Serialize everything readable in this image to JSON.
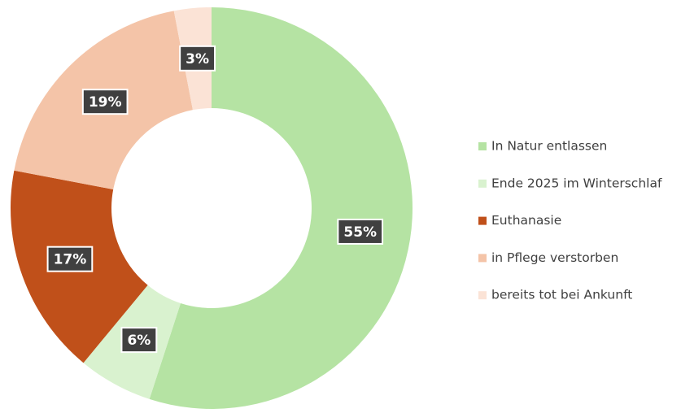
{
  "chart_data": {
    "type": "donut",
    "categories": [
      "In Natur entlassen",
      "Ende 2025 im Winterschlaf",
      "Euthanasie",
      "in Pflege verstorben",
      "bereits tot bei Ankunft"
    ],
    "values": [
      55,
      6,
      17,
      19,
      3
    ],
    "value_labels": [
      "55%",
      "6%",
      "17%",
      "19%",
      "3%"
    ],
    "colors": [
      "#b5e3a3",
      "#d9f2cf",
      "#c0501a",
      "#f4c4a8",
      "#fbe3d6"
    ],
    "legend": "right"
  }
}
